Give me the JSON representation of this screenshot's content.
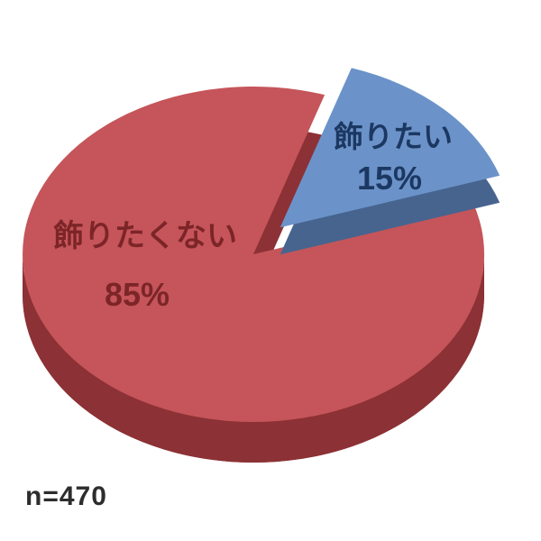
{
  "chart_data": {
    "type": "pie",
    "style": "3d-exploded-pie",
    "title": "",
    "legend": "none",
    "background": "#ffffff",
    "n_label": "n=470",
    "n_value": 470,
    "start_angle_deg": -72,
    "slices": [
      {
        "label": "飾りたい",
        "value_pct": 15,
        "pct_label": "15%",
        "color_top": "#6b93c9",
        "color_side": "#47648f",
        "label_color": "#1c3862",
        "exploded": true
      },
      {
        "label": "飾りたくない",
        "value_pct": 85,
        "pct_label": "85%",
        "color_top": "#c5555a",
        "color_side": "#8c3135",
        "label_color": "#7c2528",
        "exploded": false
      }
    ]
  }
}
